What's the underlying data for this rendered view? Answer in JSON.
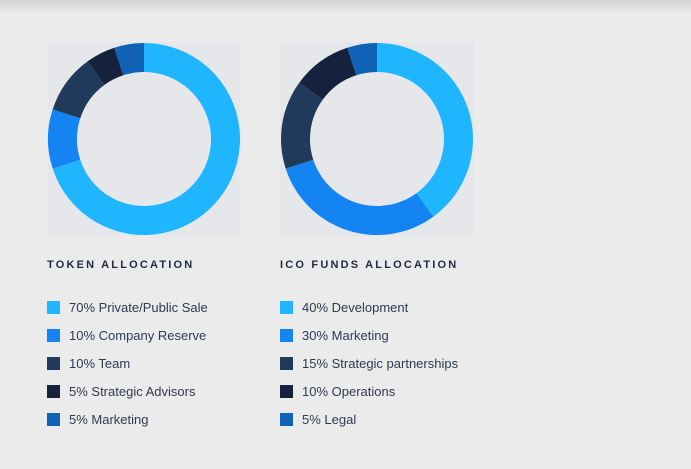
{
  "chart_data": [
    {
      "type": "pie",
      "title": "TOKEN ALLOCATION",
      "slices": [
        {
          "label": "70% Private/Public Sale",
          "value": 70,
          "color": "#1fb5ff"
        },
        {
          "label": "10% Company Reserve",
          "value": 10,
          "color": "#1384f2"
        },
        {
          "label": "10% Team",
          "value": 10,
          "color": "#213a5c"
        },
        {
          "label": "5% Strategic Advisors",
          "value": 5,
          "color": "#15213d"
        },
        {
          "label": "5% Marketing",
          "value": 5,
          "color": "#0f62b5"
        }
      ]
    },
    {
      "type": "pie",
      "title": "ICO FUNDS ALLOCATION",
      "slices": [
        {
          "label": "40% Development",
          "value": 40,
          "color": "#1fb5ff"
        },
        {
          "label": "30% Marketing",
          "value": 30,
          "color": "#1384f2"
        },
        {
          "label": "15% Strategic partnerships",
          "value": 15,
          "color": "#213a5c"
        },
        {
          "label": "10% Operations",
          "value": 10,
          "color": "#15213d"
        },
        {
          "label": "5% Legal",
          "value": 5,
          "color": "#0f62b5"
        }
      ]
    }
  ]
}
